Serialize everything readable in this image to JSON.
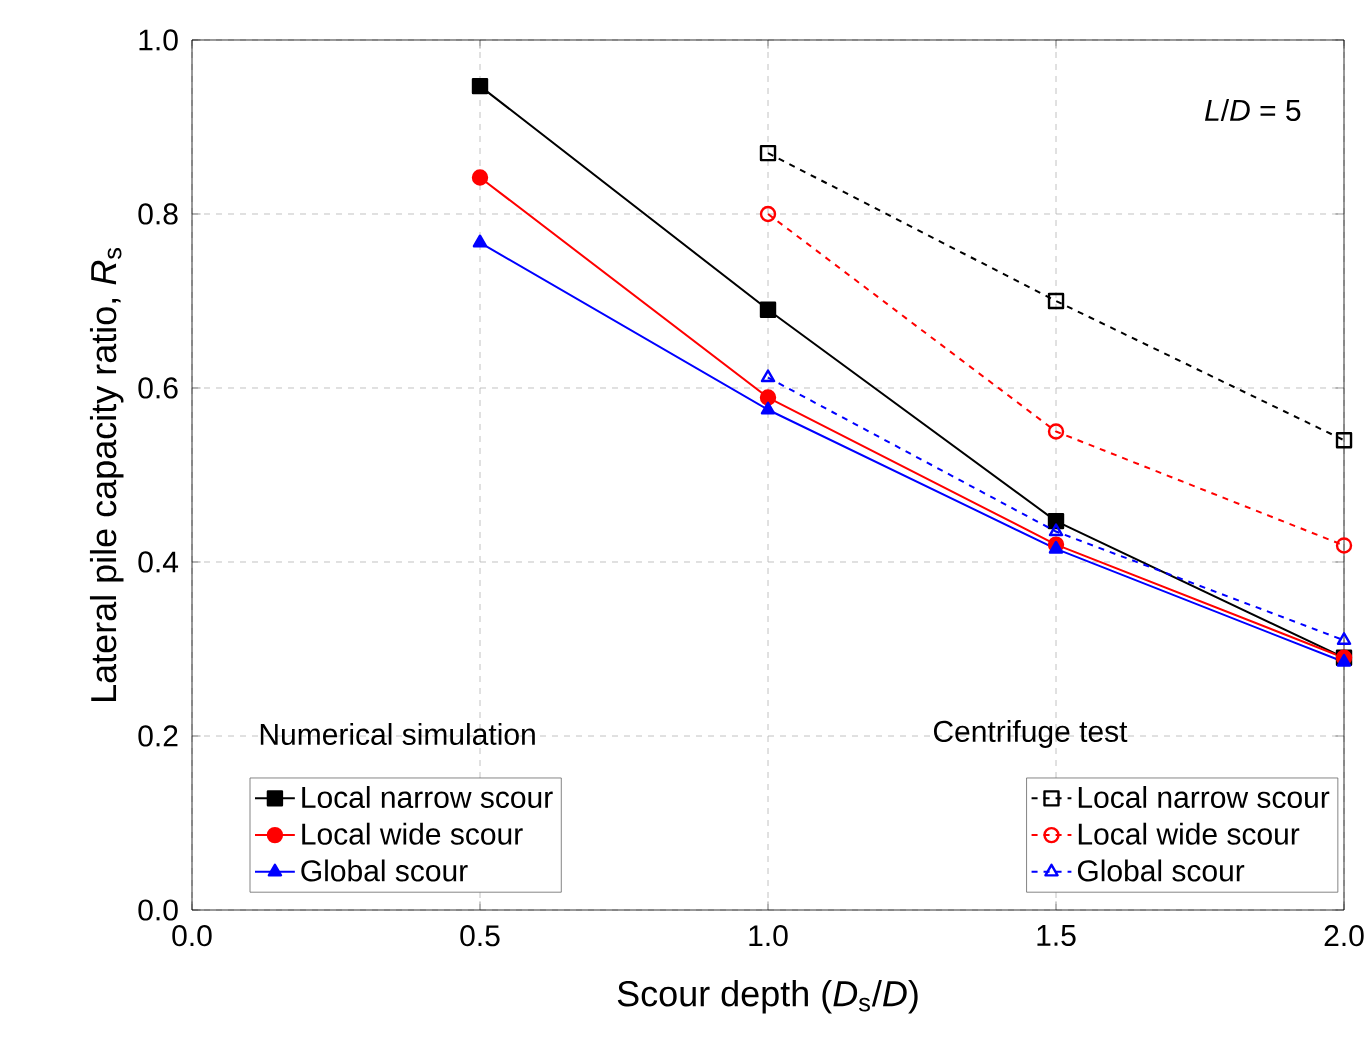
{
  "chart_data": {
    "type": "line",
    "xlabel": "Scour depth (*D*$_{s}$/*D*)",
    "ylabel": "Lateral pile capacity ratio, *R*$_{s}$",
    "x": [
      0.5,
      1.0,
      1.5,
      2.0
    ],
    "series": [
      {
        "name": "Local narrow scour",
        "color": "#000000",
        "marker": "square",
        "line_style": "solid",
        "values": [
          0.947,
          0.69,
          0.447,
          0.29
        ]
      },
      {
        "name": "Local wide scour",
        "color": "#ff0000",
        "marker": "circle",
        "line_style": "solid",
        "values": [
          0.842,
          0.589,
          0.42,
          0.29
        ]
      },
      {
        "name": "Global scour",
        "color": "#0000ff",
        "marker": "triangle",
        "line_style": "solid",
        "values": [
          0.767,
          0.575,
          0.415,
          0.285
        ]
      },
      {
        "name": "Local narrow scour",
        "color": "#000000",
        "marker": "square",
        "line_style": "dashed",
        "x": [
          1.0,
          1.5,
          2.0
        ],
        "values": [
          0.87,
          0.7,
          0.54
        ]
      },
      {
        "name": "Local wide scour",
        "color": "#ff0000",
        "marker": "circle",
        "line_style": "dashed",
        "x": [
          1.0,
          1.5,
          2.0
        ],
        "values": [
          0.8,
          0.55,
          0.419
        ]
      },
      {
        "name": "Global scour",
        "color": "#0000ff",
        "marker": "triangle",
        "line_style": "dashed",
        "x": [
          1.0,
          1.5,
          2.0
        ],
        "values": [
          0.612,
          0.435,
          0.31
        ]
      }
    ],
    "xlim": [
      0.0,
      2.0
    ],
    "ylim": [
      0.0,
      1.0
    ],
    "xticks": [
      {
        "value": 0.0,
        "label": "0.0"
      },
      0.5,
      {
        "value": 1.0,
        "label": "1.0"
      },
      1.5,
      {
        "value": 2.0,
        "label": "2.0"
      }
    ],
    "yticks": [
      {
        "value": 0.0,
        "label": "0.0"
      },
      0.2,
      0.4,
      0.6,
      0.8,
      {
        "value": 1.0,
        "label": "1.0"
      }
    ],
    "grid": true,
    "legend": "bottom",
    "annotations": [
      "*L*/*D* = 5",
      "Numerical simulation",
      "Centrifuge test"
    ]
  }
}
